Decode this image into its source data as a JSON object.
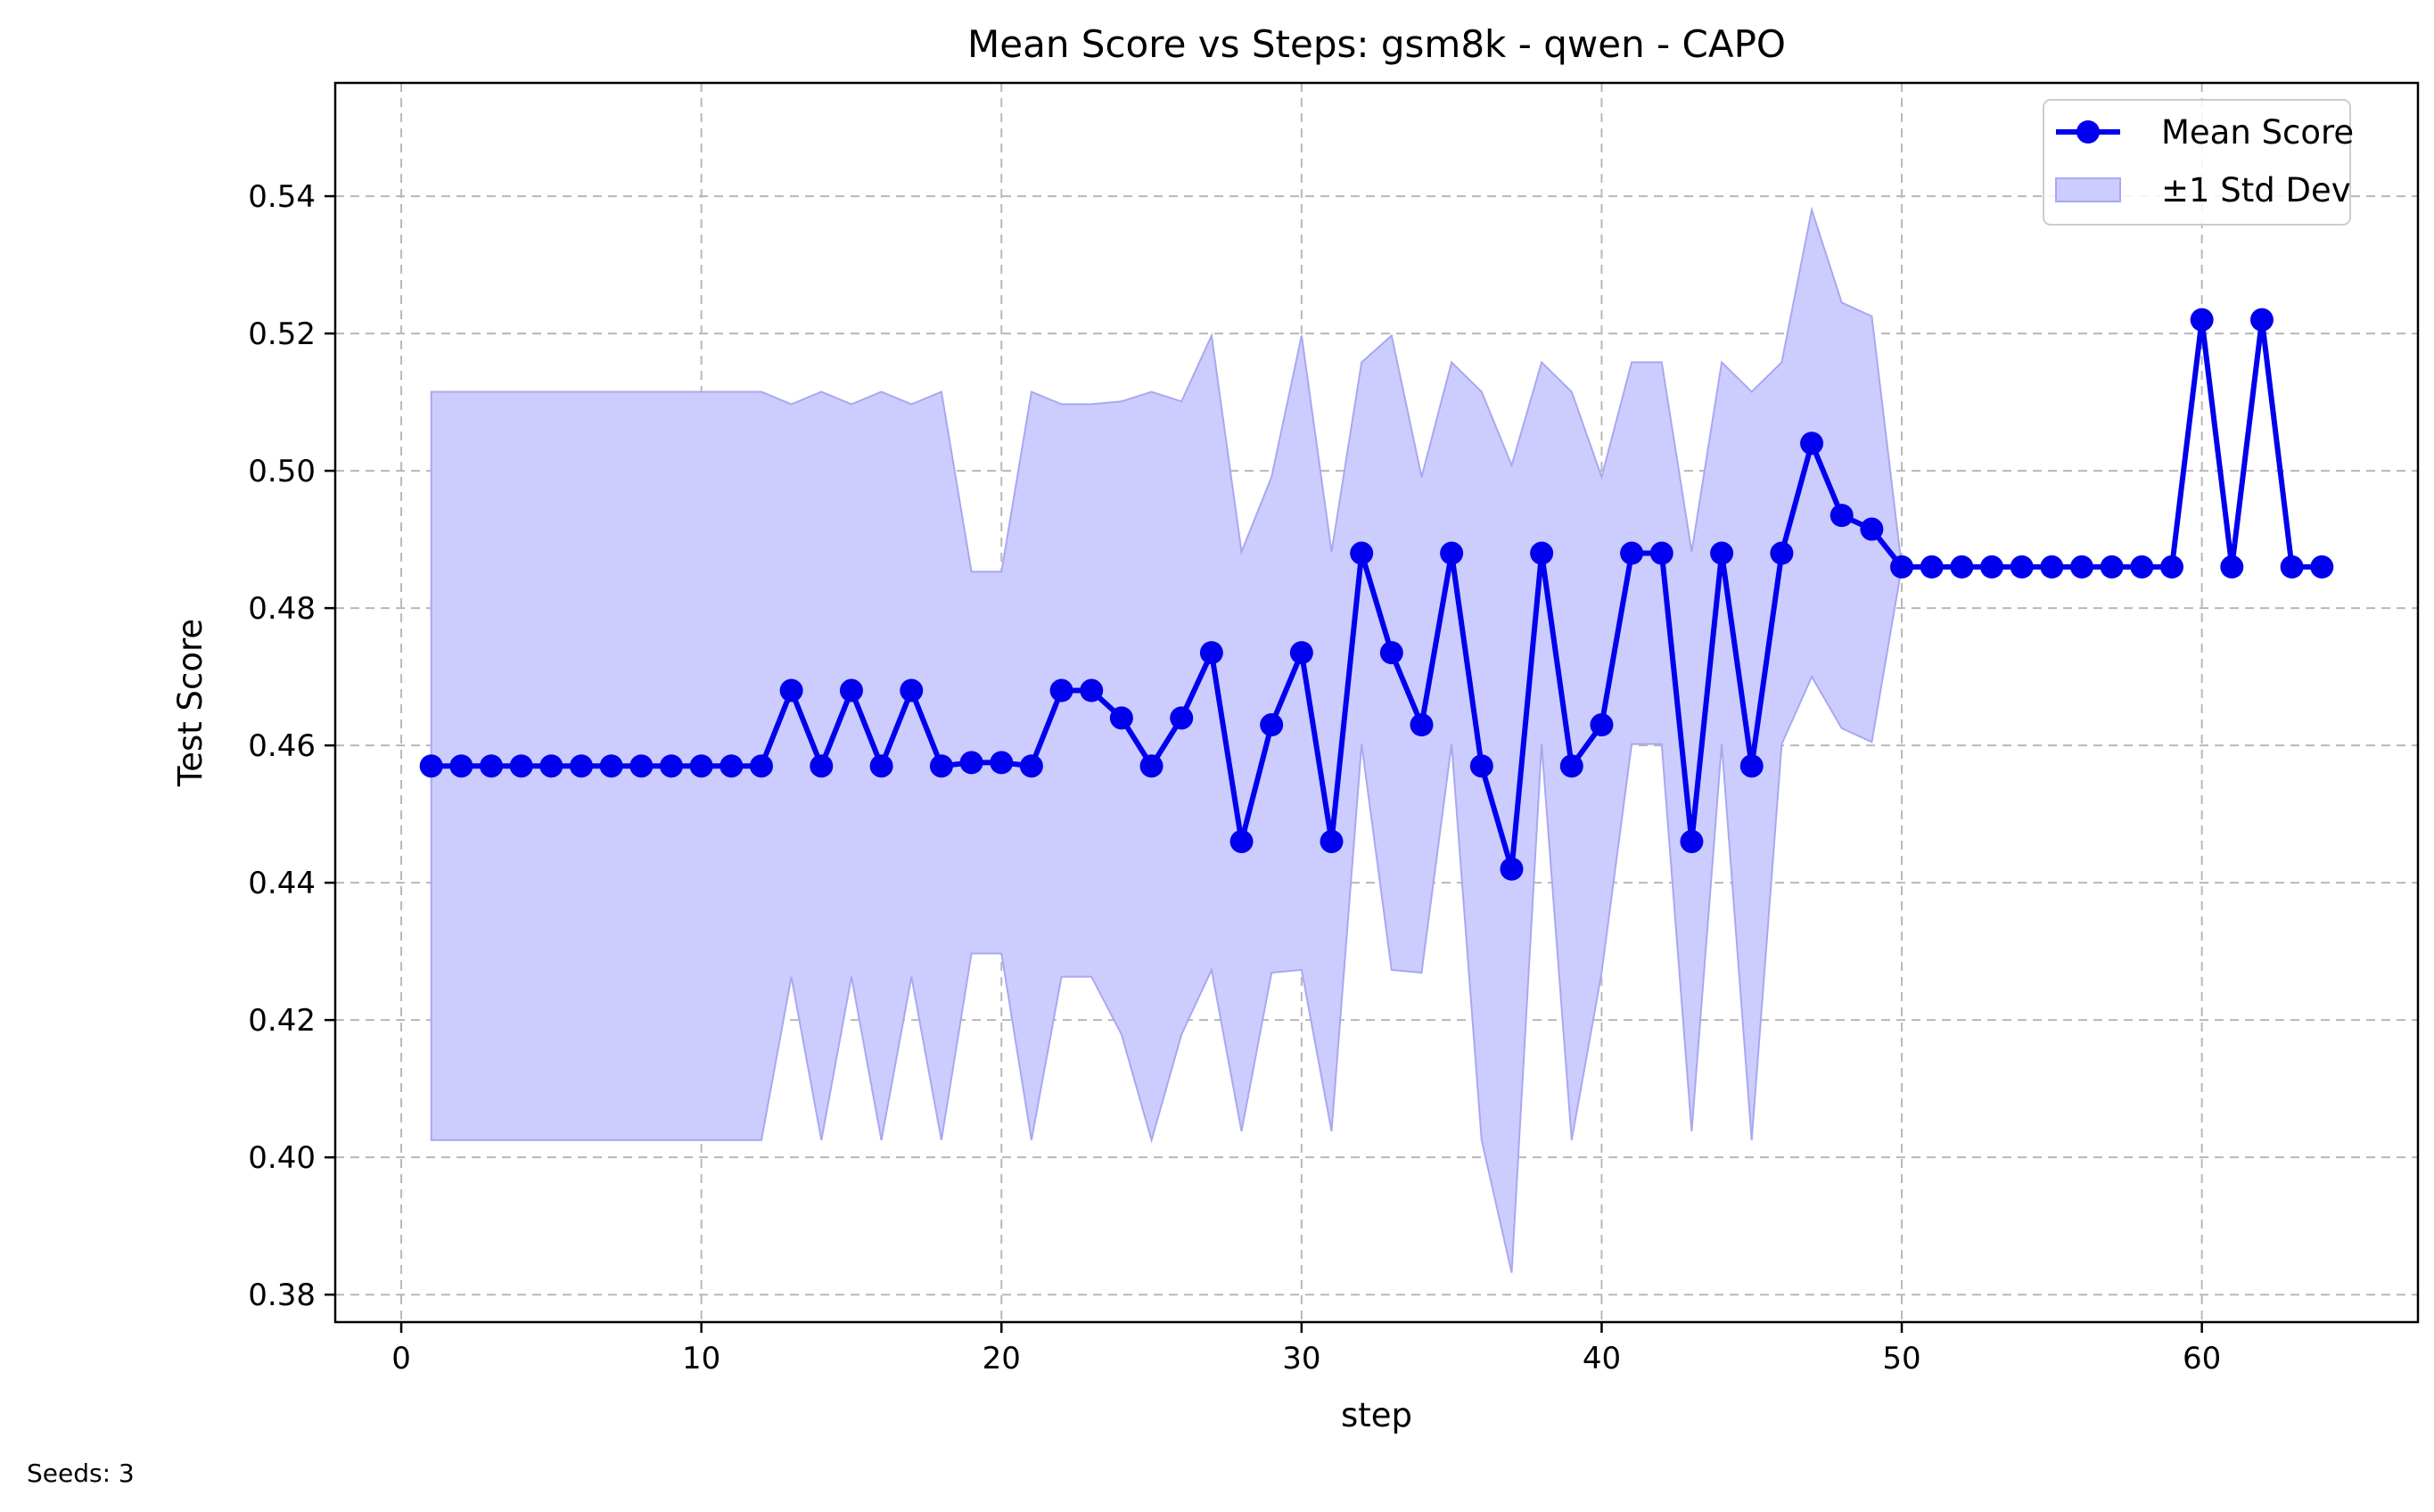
{
  "chart_data": {
    "type": "line",
    "title": "Mean Score vs Steps: gsm8k - qwen - CAPO",
    "xlabel": "step",
    "ylabel": "Test Score",
    "xlim": [
      -2.2,
      67.2
    ],
    "ylim": [
      0.376,
      0.5565
    ],
    "xticks": [
      0,
      10,
      20,
      30,
      40,
      50,
      60
    ],
    "xtick_labels": [
      "0",
      "10",
      "20",
      "30",
      "40",
      "50",
      "60"
    ],
    "yticks": [
      0.38,
      0.4,
      0.42,
      0.44,
      0.46,
      0.48,
      0.5,
      0.52,
      0.54
    ],
    "ytick_labels": [
      "0.38",
      "0.40",
      "0.42",
      "0.44",
      "0.46",
      "0.48",
      "0.50",
      "0.52",
      "0.54"
    ],
    "grid": true,
    "legend_position": "top-right",
    "colors": {
      "line": "#0000ee",
      "band": "#ccccff",
      "band_edge": "#a8a8f0"
    },
    "series": [
      {
        "name": "Mean Score",
        "x": [
          1,
          2,
          3,
          4,
          5,
          6,
          7,
          8,
          9,
          10,
          11,
          12,
          13,
          14,
          15,
          16,
          17,
          18,
          19,
          20,
          21,
          22,
          23,
          24,
          25,
          26,
          27,
          28,
          29,
          30,
          31,
          32,
          33,
          34,
          35,
          36,
          37,
          38,
          39,
          40,
          41,
          42,
          43,
          44,
          45,
          46,
          47,
          48,
          49,
          50,
          51,
          52,
          53,
          54,
          55,
          56,
          57,
          58,
          59,
          60,
          61,
          62,
          63,
          64
        ],
        "y": [
          0.457,
          0.457,
          0.457,
          0.457,
          0.457,
          0.457,
          0.457,
          0.457,
          0.457,
          0.457,
          0.457,
          0.457,
          0.468,
          0.457,
          0.468,
          0.457,
          0.468,
          0.457,
          0.4575,
          0.4575,
          0.457,
          0.468,
          0.468,
          0.464,
          0.457,
          0.464,
          0.4735,
          0.446,
          0.463,
          0.4735,
          0.446,
          0.488,
          0.4735,
          0.463,
          0.488,
          0.457,
          0.442,
          0.488,
          0.457,
          0.463,
          0.488,
          0.488,
          0.446,
          0.488,
          0.457,
          0.488,
          0.504,
          0.4935,
          0.4915,
          0.486,
          0.486,
          0.486,
          0.486,
          0.486,
          0.486,
          0.486,
          0.486,
          0.486,
          0.486,
          0.522,
          0.486,
          0.522,
          0.486,
          0.486
        ]
      }
    ],
    "band": {
      "name": "±1 Std Dev",
      "upper": [
        0.5115,
        0.5115,
        0.5115,
        0.5115,
        0.5115,
        0.5115,
        0.5115,
        0.5115,
        0.5115,
        0.5115,
        0.5115,
        0.5115,
        0.5097,
        0.5115,
        0.5097,
        0.5115,
        0.5097,
        0.5115,
        0.4853,
        0.4853,
        0.5115,
        0.5097,
        0.5097,
        0.5101,
        0.5115,
        0.5101,
        0.5197,
        0.4882,
        0.4991,
        0.5197,
        0.4882,
        0.5158,
        0.5197,
        0.4991,
        0.5158,
        0.5115,
        0.5008,
        0.5158,
        0.5115,
        0.4991,
        0.5158,
        0.5158,
        0.4882,
        0.5158,
        0.5115,
        0.5158,
        0.538,
        0.5245,
        0.5225,
        0.486,
        0.486,
        0.486,
        0.486,
        0.486,
        0.486,
        0.486,
        0.486,
        0.486,
        0.486,
        0.522,
        0.486,
        0.522,
        0.486,
        0.486
      ],
      "lower": [
        0.4025,
        0.4025,
        0.4025,
        0.4025,
        0.4025,
        0.4025,
        0.4025,
        0.4025,
        0.4025,
        0.4025,
        0.4025,
        0.4025,
        0.4263,
        0.4025,
        0.4263,
        0.4025,
        0.4263,
        0.4025,
        0.4297,
        0.4297,
        0.4025,
        0.4263,
        0.4263,
        0.4179,
        0.4025,
        0.4179,
        0.4273,
        0.4038,
        0.4269,
        0.4273,
        0.4038,
        0.4602,
        0.4273,
        0.4269,
        0.4602,
        0.4025,
        0.3832,
        0.4602,
        0.4025,
        0.4269,
        0.4602,
        0.4602,
        0.4038,
        0.4602,
        0.4025,
        0.4602,
        0.47,
        0.4625,
        0.4605,
        0.486,
        0.486,
        0.486,
        0.486,
        0.486,
        0.486,
        0.486,
        0.486,
        0.486,
        0.486,
        0.522,
        0.486,
        0.522,
        0.486,
        0.486
      ]
    }
  },
  "footer": {
    "seeds_label": "Seeds: 3"
  }
}
